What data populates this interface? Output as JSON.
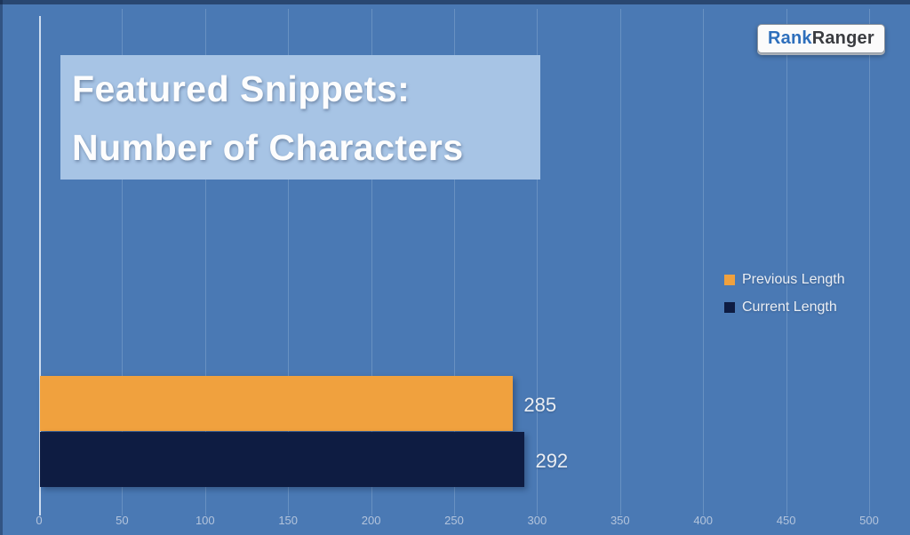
{
  "logo": {
    "part1": "Rank",
    "part2": "Ranger"
  },
  "chart_data": {
    "type": "bar",
    "orientation": "horizontal",
    "title": "Featured Snippets: Number of Characters",
    "title_lines": [
      "Featured Snippets:",
      "Number of Characters"
    ],
    "series": [
      {
        "name": "Previous Length",
        "value": 285,
        "color": "#f0a13e"
      },
      {
        "name": "Current Length",
        "value": 292,
        "color": "#0e1c42"
      }
    ],
    "xlim": [
      0,
      500
    ],
    "xticks": [
      0,
      50,
      100,
      150,
      200,
      250,
      300,
      350,
      400,
      450,
      500
    ],
    "grid": true,
    "legend_position": "right",
    "background_color": "#4a79b4",
    "data_label_color": "#e9edf3"
  }
}
